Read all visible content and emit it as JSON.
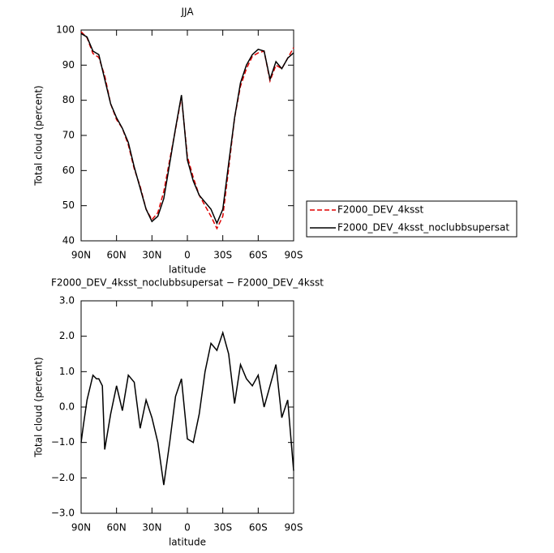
{
  "chart_data": [
    {
      "type": "line",
      "title": "JJA",
      "x_label": "latitude",
      "y_label": "Total cloud (percent)",
      "x": [
        90,
        85,
        80,
        75,
        70,
        65,
        60,
        55,
        50,
        45,
        40,
        35,
        30,
        25,
        20,
        15,
        10,
        5,
        0,
        -5,
        -10,
        -15,
        -20,
        -25,
        -30,
        -35,
        -40,
        -45,
        -50,
        -55,
        -60,
        -65,
        -70,
        -75,
        -80,
        -85,
        -90
      ],
      "xlim": [
        90,
        -90
      ],
      "xticks": [
        {
          "value": 90,
          "label": "90N"
        },
        {
          "value": 60,
          "label": "60N"
        },
        {
          "value": 30,
          "label": "30N"
        },
        {
          "value": 0,
          "label": "0"
        },
        {
          "value": -30,
          "label": "30S"
        },
        {
          "value": -60,
          "label": "60S"
        },
        {
          "value": -90,
          "label": "90S"
        }
      ],
      "ylim": [
        40,
        100
      ],
      "yticks": [
        40,
        50,
        60,
        70,
        80,
        90,
        100
      ],
      "legend": "right",
      "series": [
        {
          "name": "F2000_DEV_4ksst",
          "color": "#e00000",
          "dashed": true,
          "values": [
            99.5,
            97.8,
            93.3,
            92.2,
            87,
            79,
            74.5,
            72,
            67.3,
            60.5,
            55.5,
            49,
            46,
            48,
            54,
            63,
            71.7,
            81,
            64,
            58,
            53,
            50,
            47,
            43.5,
            47,
            60.5,
            75,
            84,
            89,
            92.5,
            93.5,
            94,
            85.5,
            90,
            89,
            92,
            95
          ]
        },
        {
          "name": "F2000_DEV_4ksst_noclubbsupersat",
          "color": "#000000",
          "dashed": false,
          "values": [
            99,
            98,
            94,
            93,
            86,
            79,
            75,
            72,
            68,
            61,
            55,
            49,
            45.5,
            47,
            52,
            62,
            72,
            81.5,
            63,
            57,
            53,
            51,
            49,
            45,
            49,
            62,
            75,
            85,
            90,
            93,
            94.5,
            94,
            86,
            91,
            89,
            92,
            93.5
          ]
        }
      ]
    },
    {
      "type": "line",
      "title": "F2000_DEV_4ksst_noclubbsupersat − F2000_DEV_4ksst",
      "x_label": "latitude",
      "y_label": "Total cloud (percent)",
      "x": [
        90,
        88,
        85,
        80,
        77,
        75,
        72,
        70,
        65,
        60,
        55,
        50,
        45,
        40,
        35,
        30,
        25,
        20,
        15,
        10,
        5,
        0,
        -5,
        -10,
        -15,
        -20,
        -25,
        -30,
        -35,
        -40,
        -45,
        -50,
        -55,
        -60,
        -65,
        -70,
        -75,
        -80,
        -85,
        -90
      ],
      "xlim": [
        90,
        -90
      ],
      "xticks": [
        {
          "value": 90,
          "label": "90N"
        },
        {
          "value": 60,
          "label": "60N"
        },
        {
          "value": 30,
          "label": "30N"
        },
        {
          "value": 0,
          "label": "0"
        },
        {
          "value": -30,
          "label": "30S"
        },
        {
          "value": -60,
          "label": "60S"
        },
        {
          "value": -90,
          "label": "90S"
        }
      ],
      "ylim": [
        -3,
        3
      ],
      "yticks": [
        {
          "value": -3,
          "label": "−3.0"
        },
        {
          "value": -2,
          "label": "−2.0"
        },
        {
          "value": -1,
          "label": "−1.0"
        },
        {
          "value": 0,
          "label": "0.0"
        },
        {
          "value": 1,
          "label": "1.0"
        },
        {
          "value": 2,
          "label": "2.0"
        },
        {
          "value": 3,
          "label": "3.0"
        }
      ],
      "series": [
        {
          "color": "#000000",
          "dashed": false,
          "values": [
            -1.0,
            -0.5,
            0.2,
            0.9,
            0.8,
            0.8,
            0.6,
            -1.2,
            -0.2,
            0.6,
            -0.1,
            0.9,
            0.7,
            -0.6,
            0.2,
            -0.3,
            -1.0,
            -2.2,
            -1.0,
            0.3,
            0.8,
            -0.9,
            -1.0,
            -0.2,
            1.0,
            1.8,
            1.6,
            2.1,
            1.5,
            0.1,
            1.2,
            0.8,
            0.6,
            0.9,
            0.0,
            0.6,
            1.2,
            -0.3,
            0.2,
            -1.8
          ]
        }
      ]
    }
  ]
}
